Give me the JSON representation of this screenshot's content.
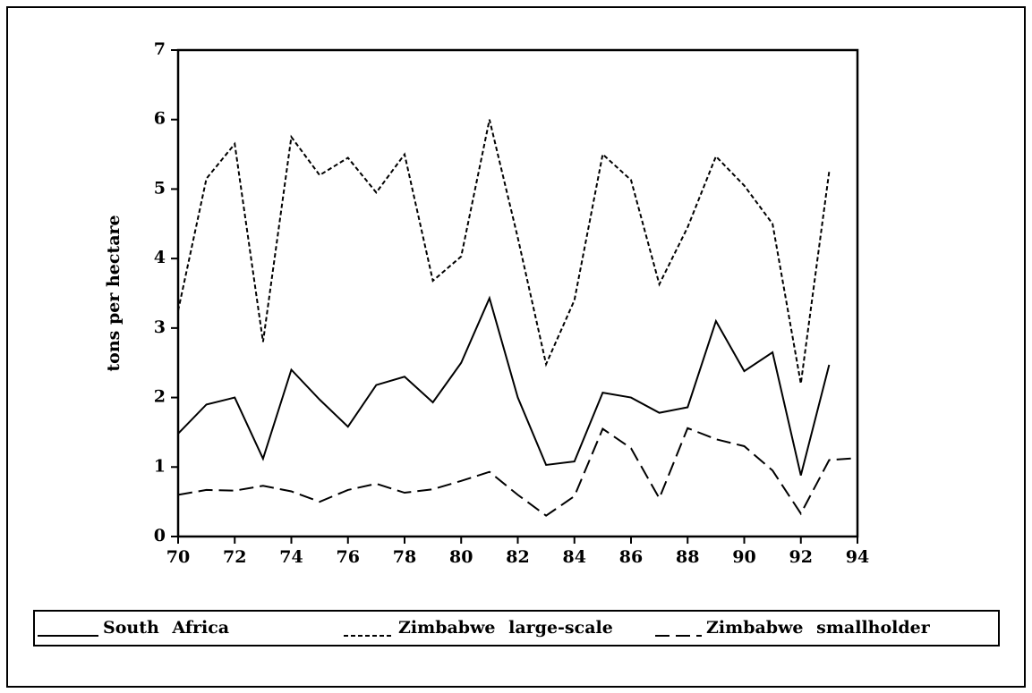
{
  "chart_data": {
    "type": "line",
    "y_label": "tons per hectare",
    "x": [
      70,
      71,
      72,
      73,
      74,
      75,
      76,
      77,
      78,
      79,
      80,
      81,
      82,
      83,
      84,
      85,
      86,
      87,
      88,
      89,
      90,
      91,
      92,
      93,
      94
    ],
    "series": [
      {
        "name": "South Africa",
        "color": "#000000",
        "dash": "solid",
        "values": [
          1.48,
          1.9,
          2.0,
          1.12,
          2.4,
          1.97,
          1.58,
          2.18,
          2.3,
          1.93,
          2.5,
          3.43,
          2.0,
          1.03,
          1.08,
          2.07,
          2.0,
          1.78,
          1.86,
          3.1,
          2.38,
          2.65,
          0.88,
          2.47,
          null
        ]
      },
      {
        "name": "Zimbabwe large-scale",
        "color": "#000000",
        "dash": "dotted",
        "values": [
          3.25,
          5.15,
          5.65,
          2.8,
          5.75,
          5.2,
          5.45,
          4.95,
          5.5,
          3.68,
          4.03,
          6.0,
          4.3,
          2.48,
          3.4,
          5.5,
          5.13,
          3.63,
          4.45,
          5.47,
          5.05,
          4.5,
          2.2,
          5.25,
          null
        ]
      },
      {
        "name": "Zimbabwe smallholder",
        "color": "#000000",
        "dash": "dashed",
        "values": [
          0.6,
          0.67,
          0.66,
          0.73,
          0.65,
          0.5,
          0.67,
          0.76,
          0.63,
          0.68,
          0.8,
          0.93,
          0.6,
          0.3,
          0.58,
          1.55,
          1.27,
          0.55,
          1.56,
          1.4,
          1.3,
          0.95,
          0.33,
          1.1,
          1.13
        ]
      }
    ],
    "xlim": [
      70,
      94
    ],
    "xticks": [
      70,
      72,
      74,
      76,
      78,
      80,
      82,
      84,
      86,
      88,
      90,
      92,
      94
    ],
    "ylim": [
      0,
      7
    ],
    "yticks": [
      0,
      1,
      2,
      3,
      4,
      5,
      6,
      7
    ],
    "legend": "bottom"
  }
}
